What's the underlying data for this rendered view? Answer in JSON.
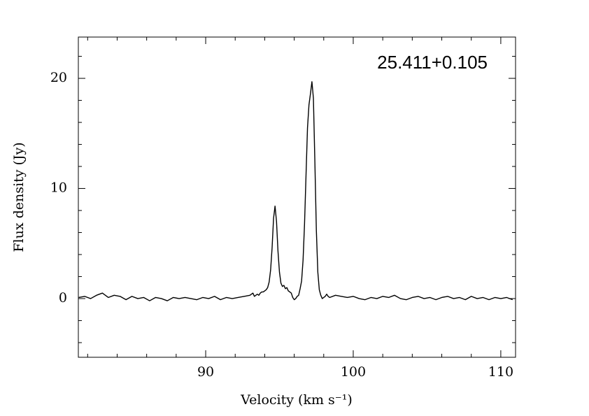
{
  "chart_data": {
    "type": "line",
    "annotation": "25.411+0.105",
    "x_label": "Velocity (km s⁻¹)",
    "y_label": "Flux density (Jy)",
    "color": "#000000",
    "xlim": [
      81.37,
      111.0
    ],
    "ylim": [
      -5.33,
      23.75
    ],
    "xticks": [
      90,
      100,
      110
    ],
    "yticks": [
      0,
      10,
      20
    ],
    "xminorticks": [
      82,
      84,
      86,
      88,
      92,
      94,
      96,
      98,
      102,
      104,
      106,
      108
    ],
    "yminorticks": [
      -4,
      -2,
      2,
      4,
      6,
      8,
      12,
      14,
      16,
      18,
      22
    ],
    "x": [
      81.4,
      81.8,
      82.2,
      82.6,
      83.0,
      83.4,
      83.8,
      84.2,
      84.6,
      85.0,
      85.4,
      85.8,
      86.2,
      86.6,
      87.0,
      87.4,
      87.8,
      88.2,
      88.6,
      89.0,
      89.4,
      89.8,
      90.2,
      90.6,
      91.0,
      91.4,
      91.8,
      92.2,
      92.6,
      93.0,
      93.2,
      93.3,
      93.4,
      93.5,
      93.6,
      93.7,
      93.8,
      93.9,
      94.0,
      94.1,
      94.2,
      94.3,
      94.4,
      94.5,
      94.6,
      94.7,
      94.8,
      94.9,
      95.0,
      95.1,
      95.2,
      95.3,
      95.4,
      95.5,
      95.6,
      95.7,
      95.8,
      95.9,
      96.0,
      96.1,
      96.2,
      96.3,
      96.4,
      96.5,
      96.6,
      96.7,
      96.8,
      96.9,
      97.0,
      97.1,
      97.2,
      97.3,
      97.4,
      97.5,
      97.6,
      97.7,
      97.8,
      97.9,
      98.0,
      98.1,
      98.2,
      98.3,
      98.4,
      98.8,
      99.2,
      99.6,
      100.0,
      100.4,
      100.8,
      101.2,
      101.6,
      102.0,
      102.4,
      102.8,
      103.2,
      103.6,
      104.0,
      104.4,
      104.8,
      105.2,
      105.6,
      106.0,
      106.4,
      106.8,
      107.2,
      107.6,
      108.0,
      108.4,
      108.8,
      109.2,
      109.6,
      110.0,
      110.4,
      110.8
    ],
    "values": [
      0.1,
      0.2,
      0.0,
      0.3,
      0.5,
      0.1,
      0.3,
      0.2,
      -0.1,
      0.2,
      0.0,
      0.1,
      -0.2,
      0.1,
      0.0,
      -0.2,
      0.1,
      0.0,
      0.1,
      0.0,
      -0.1,
      0.1,
      0.0,
      0.2,
      -0.1,
      0.1,
      0.0,
      0.1,
      0.2,
      0.3,
      0.5,
      0.2,
      0.3,
      0.4,
      0.3,
      0.5,
      0.6,
      0.6,
      0.7,
      0.8,
      1.0,
      1.5,
      2.6,
      4.6,
      7.3,
      8.4,
      7.0,
      4.3,
      2.4,
      1.4,
      1.1,
      1.2,
      0.9,
      1.0,
      0.7,
      0.6,
      0.5,
      0.1,
      -0.1,
      0.0,
      0.2,
      0.3,
      0.9,
      1.6,
      3.5,
      6.8,
      11.2,
      15.5,
      17.6,
      18.6,
      19.7,
      18.2,
      12.4,
      6.2,
      2.4,
      0.8,
      0.3,
      0.0,
      0.1,
      0.2,
      0.4,
      0.2,
      0.1,
      0.3,
      0.2,
      0.1,
      0.2,
      0.0,
      -0.1,
      0.1,
      0.0,
      0.2,
      0.1,
      0.3,
      0.0,
      -0.1,
      0.1,
      0.2,
      0.0,
      0.1,
      -0.1,
      0.1,
      0.2,
      0.0,
      0.1,
      -0.1,
      0.2,
      0.0,
      0.1,
      -0.1,
      0.1,
      0.0,
      0.1,
      -0.1
    ]
  }
}
